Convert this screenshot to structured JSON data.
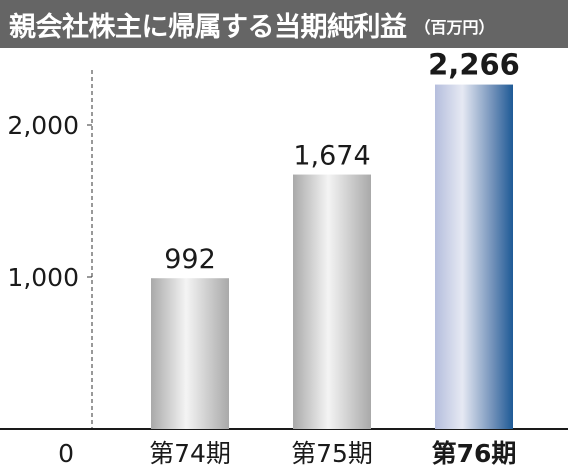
{
  "header": {
    "title": "親会社株主に帰属する当期純利益",
    "unit": "（百万円）"
  },
  "colors": {
    "header_bg": "#656565",
    "highlight_dark": "#1e5a96",
    "highlight_light": "#e6e9f3",
    "gray_dark": "#a9a9a9",
    "gray_light": "#f4f4f4"
  },
  "chart_data": {
    "type": "bar",
    "categories": [
      "第74期",
      "第75期",
      "第76期"
    ],
    "values": [
      992,
      1674,
      2266
    ],
    "value_labels": [
      "992",
      "1,674",
      "2,266"
    ],
    "highlight_index": 2,
    "yticks": [
      0,
      1000,
      2000
    ],
    "ytick_labels": [
      "0",
      "1,000",
      "2,000"
    ],
    "ylim": [
      0,
      2500
    ],
    "title": "親会社株主に帰属する当期純利益",
    "unit": "（百万円）",
    "grid": false
  }
}
